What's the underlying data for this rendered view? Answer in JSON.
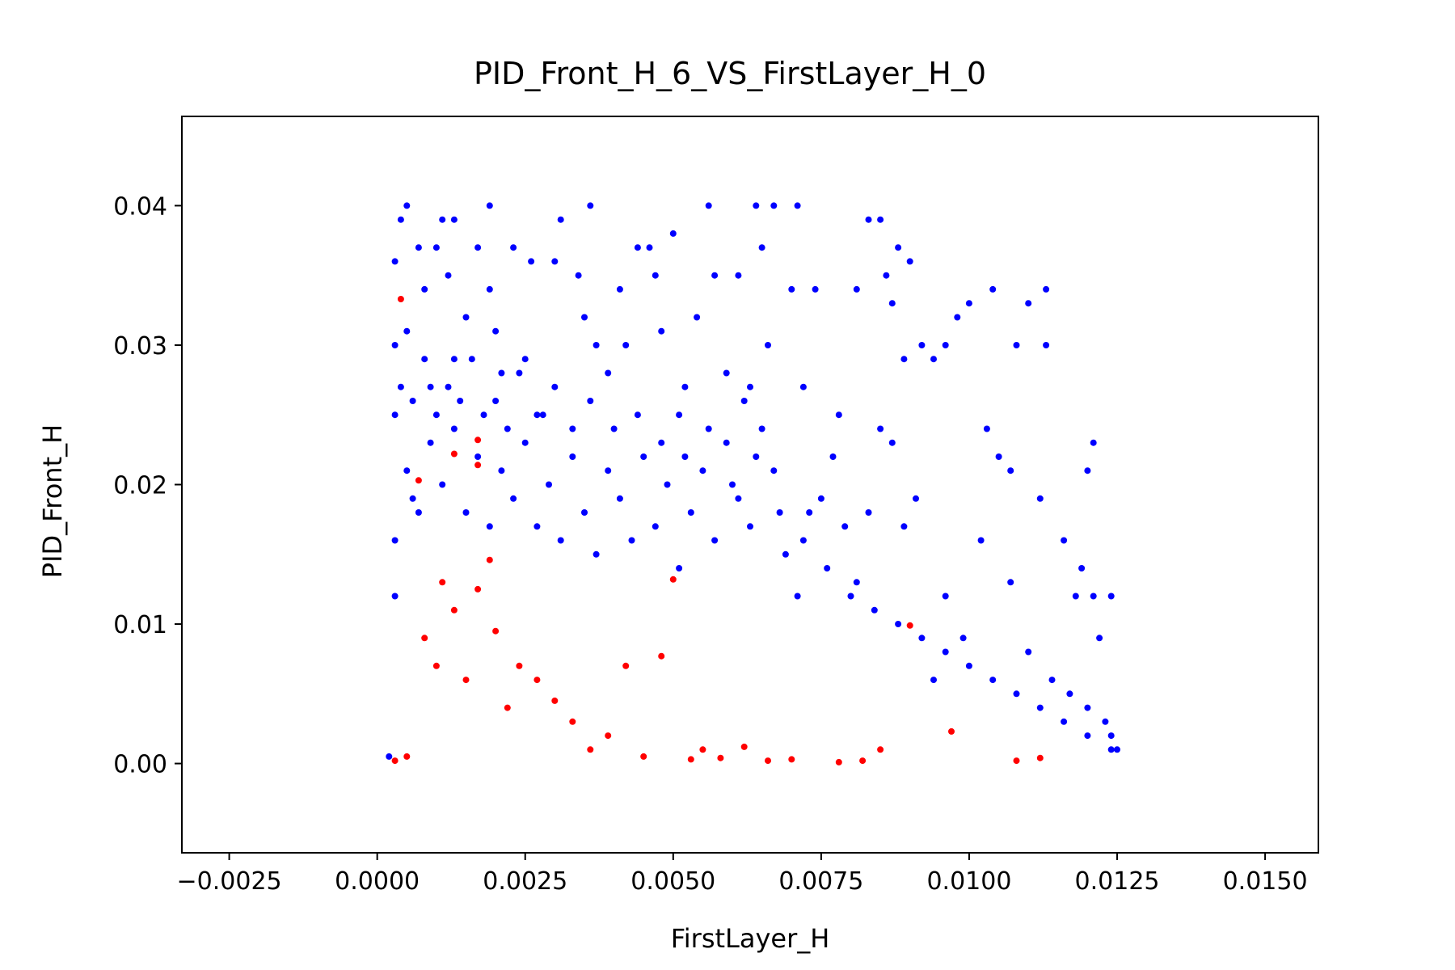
{
  "chart_data": {
    "type": "scatter",
    "title": "PID_Front_H_6_VS_FirstLayer_H_0",
    "xlabel": "FirstLayer_H",
    "ylabel": "PID_Front_H",
    "xlim": [
      -0.0033,
      0.0159
    ],
    "ylim": [
      -0.0064,
      0.0464
    ],
    "x_ticks": [
      "−0.0025",
      "0.0000",
      "0.0025",
      "0.0050",
      "0.0075",
      "0.0100",
      "0.0125",
      "0.0150"
    ],
    "x_tick_values": [
      -0.0025,
      0.0,
      0.0025,
      0.005,
      0.0075,
      0.01,
      0.0125,
      0.015
    ],
    "y_ticks": [
      "0.00",
      "0.01",
      "0.02",
      "0.03",
      "0.04"
    ],
    "y_tick_values": [
      0.0,
      0.01,
      0.02,
      0.03,
      0.04
    ],
    "grid": false,
    "legend": "none",
    "series": [
      {
        "color": "#0000ff",
        "points": [
          [
            0.0002,
            0.0005
          ],
          [
            0.0003,
            0.012
          ],
          [
            0.0003,
            0.025
          ],
          [
            0.0003,
            0.036
          ],
          [
            0.0004,
            0.039
          ],
          [
            0.0005,
            0.04
          ],
          [
            0.0005,
            0.031
          ],
          [
            0.0006,
            0.019
          ],
          [
            0.0007,
            0.037
          ],
          [
            0.0008,
            0.034
          ],
          [
            0.0009,
            0.027
          ],
          [
            0.001,
            0.037
          ],
          [
            0.0011,
            0.039
          ],
          [
            0.0012,
            0.035
          ],
          [
            0.0013,
            0.039
          ],
          [
            0.0013,
            0.029
          ],
          [
            0.0015,
            0.032
          ],
          [
            0.0017,
            0.037
          ],
          [
            0.0019,
            0.04
          ],
          [
            0.0019,
            0.034
          ],
          [
            0.002,
            0.031
          ],
          [
            0.0021,
            0.028
          ],
          [
            0.0023,
            0.037
          ],
          [
            0.0025,
            0.029
          ],
          [
            0.0026,
            0.036
          ],
          [
            0.0028,
            0.025
          ],
          [
            0.003,
            0.036
          ],
          [
            0.0031,
            0.039
          ],
          [
            0.0034,
            0.035
          ],
          [
            0.0035,
            0.032
          ],
          [
            0.0036,
            0.04
          ],
          [
            0.0037,
            0.03
          ],
          [
            0.0039,
            0.028
          ],
          [
            0.0041,
            0.034
          ],
          [
            0.0042,
            0.03
          ],
          [
            0.0044,
            0.037
          ],
          [
            0.0046,
            0.037
          ],
          [
            0.0047,
            0.035
          ],
          [
            0.0048,
            0.031
          ],
          [
            0.005,
            0.038
          ],
          [
            0.0051,
            0.025
          ],
          [
            0.0052,
            0.027
          ],
          [
            0.0054,
            0.032
          ],
          [
            0.0056,
            0.04
          ],
          [
            0.0057,
            0.035
          ],
          [
            0.0059,
            0.028
          ],
          [
            0.0061,
            0.035
          ],
          [
            0.0062,
            0.026
          ],
          [
            0.0063,
            0.027
          ],
          [
            0.0064,
            0.04
          ],
          [
            0.0065,
            0.037
          ],
          [
            0.0066,
            0.03
          ],
          [
            0.0067,
            0.04
          ],
          [
            0.007,
            0.034
          ],
          [
            0.0071,
            0.04
          ],
          [
            0.0072,
            0.027
          ],
          [
            0.0074,
            0.034
          ],
          [
            0.0078,
            0.025
          ],
          [
            0.0081,
            0.034
          ],
          [
            0.0083,
            0.039
          ],
          [
            0.0085,
            0.039
          ],
          [
            0.0086,
            0.035
          ],
          [
            0.0087,
            0.033
          ],
          [
            0.0088,
            0.037
          ],
          [
            0.0089,
            0.029
          ],
          [
            0.009,
            0.036
          ],
          [
            0.0092,
            0.03
          ],
          [
            0.0094,
            0.029
          ],
          [
            0.0096,
            0.03
          ],
          [
            0.0098,
            0.032
          ],
          [
            0.01,
            0.033
          ],
          [
            0.0104,
            0.034
          ],
          [
            0.0108,
            0.03
          ],
          [
            0.011,
            0.033
          ],
          [
            0.0113,
            0.034
          ],
          [
            0.0113,
            0.03
          ],
          [
            0.0103,
            0.024
          ],
          [
            0.0105,
            0.022
          ],
          [
            0.0107,
            0.021
          ],
          [
            0.0112,
            0.019
          ],
          [
            0.0116,
            0.016
          ],
          [
            0.0119,
            0.014
          ],
          [
            0.0121,
            0.023
          ],
          [
            0.012,
            0.021
          ],
          [
            0.0118,
            0.012
          ],
          [
            0.0121,
            0.012
          ],
          [
            0.0124,
            0.012
          ],
          [
            0.0122,
            0.009
          ],
          [
            0.0117,
            0.005
          ],
          [
            0.012,
            0.004
          ],
          [
            0.0123,
            0.003
          ],
          [
            0.0124,
            0.002
          ],
          [
            0.0125,
            0.001
          ],
          [
            0.0114,
            0.006
          ],
          [
            0.011,
            0.008
          ],
          [
            0.0107,
            0.013
          ],
          [
            0.0102,
            0.016
          ],
          [
            0.0099,
            0.009
          ],
          [
            0.0096,
            0.012
          ],
          [
            0.0094,
            0.006
          ],
          [
            0.0091,
            0.019
          ],
          [
            0.0089,
            0.017
          ],
          [
            0.0087,
            0.023
          ],
          [
            0.0085,
            0.024
          ],
          [
            0.0083,
            0.018
          ],
          [
            0.0081,
            0.013
          ],
          [
            0.0079,
            0.017
          ],
          [
            0.0077,
            0.022
          ],
          [
            0.0075,
            0.019
          ],
          [
            0.0073,
            0.018
          ],
          [
            0.0071,
            0.012
          ],
          [
            0.0069,
            0.015
          ],
          [
            0.0067,
            0.021
          ],
          [
            0.0065,
            0.024
          ],
          [
            0.0063,
            0.017
          ],
          [
            0.0061,
            0.019
          ],
          [
            0.0059,
            0.023
          ],
          [
            0.0057,
            0.016
          ],
          [
            0.0055,
            0.021
          ],
          [
            0.0053,
            0.018
          ],
          [
            0.0051,
            0.014
          ],
          [
            0.0049,
            0.02
          ],
          [
            0.0047,
            0.017
          ],
          [
            0.0045,
            0.022
          ],
          [
            0.0043,
            0.016
          ],
          [
            0.0041,
            0.019
          ],
          [
            0.0039,
            0.021
          ],
          [
            0.0037,
            0.015
          ],
          [
            0.0035,
            0.018
          ],
          [
            0.0033,
            0.022
          ],
          [
            0.0031,
            0.016
          ],
          [
            0.0029,
            0.02
          ],
          [
            0.0027,
            0.017
          ],
          [
            0.0025,
            0.023
          ],
          [
            0.0023,
            0.019
          ],
          [
            0.0021,
            0.021
          ],
          [
            0.0019,
            0.017
          ],
          [
            0.0017,
            0.022
          ],
          [
            0.0015,
            0.018
          ],
          [
            0.0013,
            0.024
          ],
          [
            0.0011,
            0.02
          ],
          [
            0.0009,
            0.023
          ],
          [
            0.0007,
            0.018
          ],
          [
            0.0005,
            0.021
          ],
          [
            0.0003,
            0.016
          ],
          [
            0.0003,
            0.03
          ],
          [
            0.0004,
            0.027
          ],
          [
            0.0006,
            0.026
          ],
          [
            0.0008,
            0.029
          ],
          [
            0.001,
            0.025
          ],
          [
            0.0012,
            0.027
          ],
          [
            0.0014,
            0.026
          ],
          [
            0.0016,
            0.029
          ],
          [
            0.0018,
            0.025
          ],
          [
            0.002,
            0.026
          ],
          [
            0.0022,
            0.024
          ],
          [
            0.0024,
            0.028
          ],
          [
            0.0027,
            0.025
          ],
          [
            0.003,
            0.027
          ],
          [
            0.0033,
            0.024
          ],
          [
            0.0036,
            0.026
          ],
          [
            0.004,
            0.024
          ],
          [
            0.0044,
            0.025
          ],
          [
            0.0048,
            0.023
          ],
          [
            0.0052,
            0.022
          ],
          [
            0.0056,
            0.024
          ],
          [
            0.006,
            0.02
          ],
          [
            0.0064,
            0.022
          ],
          [
            0.0068,
            0.018
          ],
          [
            0.0072,
            0.016
          ],
          [
            0.0076,
            0.014
          ],
          [
            0.008,
            0.012
          ],
          [
            0.0084,
            0.011
          ],
          [
            0.0088,
            0.01
          ],
          [
            0.0092,
            0.009
          ],
          [
            0.0096,
            0.008
          ],
          [
            0.01,
            0.007
          ],
          [
            0.0104,
            0.006
          ],
          [
            0.0108,
            0.005
          ],
          [
            0.0112,
            0.004
          ],
          [
            0.0116,
            0.003
          ],
          [
            0.012,
            0.002
          ],
          [
            0.0124,
            0.001
          ]
        ]
      },
      {
        "color": "#ff0000",
        "points": [
          [
            0.0003,
            0.0002
          ],
          [
            0.0004,
            0.0333
          ],
          [
            0.0005,
            0.0005
          ],
          [
            0.0007,
            0.0203
          ],
          [
            0.0008,
            0.009
          ],
          [
            0.001,
            0.007
          ],
          [
            0.0011,
            0.013
          ],
          [
            0.0013,
            0.0222
          ],
          [
            0.0013,
            0.011
          ],
          [
            0.0015,
            0.006
          ],
          [
            0.0017,
            0.0232
          ],
          [
            0.0017,
            0.0214
          ],
          [
            0.0017,
            0.0125
          ],
          [
            0.0019,
            0.0146
          ],
          [
            0.002,
            0.0095
          ],
          [
            0.0022,
            0.004
          ],
          [
            0.0024,
            0.007
          ],
          [
            0.0027,
            0.006
          ],
          [
            0.003,
            0.0045
          ],
          [
            0.0033,
            0.003
          ],
          [
            0.0036,
            0.001
          ],
          [
            0.0039,
            0.002
          ],
          [
            0.0042,
            0.007
          ],
          [
            0.0045,
            0.0005
          ],
          [
            0.0048,
            0.0077
          ],
          [
            0.005,
            0.0132
          ],
          [
            0.0053,
            0.0003
          ],
          [
            0.0055,
            0.001
          ],
          [
            0.0058,
            0.0004
          ],
          [
            0.0062,
            0.0012
          ],
          [
            0.0066,
            0.0002
          ],
          [
            0.007,
            0.0003
          ],
          [
            0.0078,
            0.0001
          ],
          [
            0.0082,
            0.0002
          ],
          [
            0.0085,
            0.001
          ],
          [
            0.009,
            0.0099
          ],
          [
            0.0097,
            0.0023
          ],
          [
            0.0108,
            0.0002
          ],
          [
            0.0112,
            0.0004
          ]
        ]
      }
    ]
  }
}
